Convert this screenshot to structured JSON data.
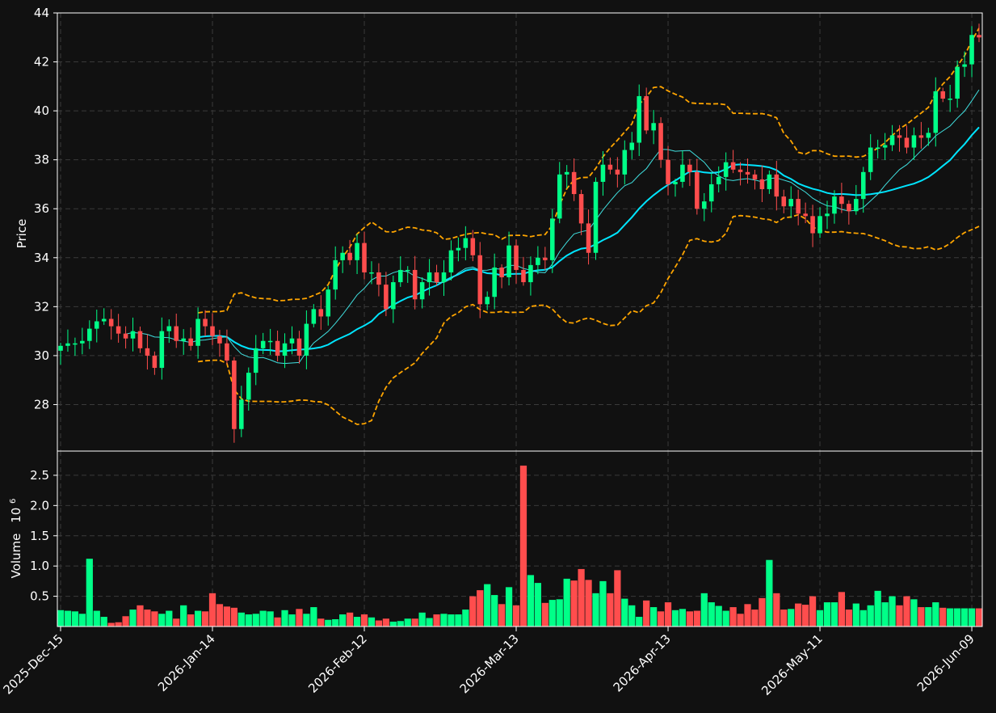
{
  "chart_data": {
    "type": "candlestick",
    "colors": {
      "background": "#111111",
      "up": "#00ff88",
      "down": "#ff4d4d",
      "bollinger": "#ffa500",
      "sma_fast": "#40e0e0",
      "sma_slow": "#00e5ff",
      "grid": "#3a3a3a",
      "axis": "#ffffff"
    },
    "price_panel": {
      "ylabel": "Price",
      "yticks": [
        28,
        30,
        32,
        34,
        36,
        38,
        40,
        42,
        44
      ],
      "ylim": [
        26.1,
        44.0
      ],
      "grid": true
    },
    "volume_panel": {
      "ylabel": "Volume",
      "ylabel_exp": "10",
      "ylabel_exp_power": "6",
      "yticks": [
        "0.5",
        "1.0",
        "1.5",
        "2.0",
        "2.5"
      ],
      "ytick_values": [
        0.5,
        1.0,
        1.5,
        2.0,
        2.5
      ],
      "ylim": [
        0,
        2.9
      ],
      "grid": true
    },
    "xaxis": {
      "tick_labels": [
        "2025-Dec-15",
        "2026-Jan-14",
        "2026-Feb-12",
        "2026-Mar-13",
        "2026-Apr-13",
        "2026-May-11",
        "2026-Jun-09"
      ],
      "tick_indices": [
        0,
        21,
        42,
        63,
        84,
        105,
        126
      ],
      "count": 128
    },
    "close": [
      30.4,
      30.5,
      30.5,
      30.6,
      31.1,
      31.4,
      31.5,
      31.2,
      30.9,
      30.7,
      31.0,
      30.3,
      30.0,
      29.5,
      31.0,
      31.2,
      30.6,
      30.7,
      30.4,
      31.5,
      31.2,
      30.8,
      30.5,
      29.8,
      27.0,
      28.2,
      29.3,
      30.3,
      30.6,
      30.6,
      30.0,
      30.5,
      30.7,
      30.0,
      31.3,
      31.9,
      31.6,
      32.7,
      33.9,
      34.2,
      33.9,
      34.6,
      33.4,
      33.4,
      32.9,
      31.9,
      33.0,
      33.5,
      33.5,
      32.3,
      33.0,
      33.4,
      33.0,
      33.4,
      34.3,
      34.4,
      34.8,
      34.1,
      32.1,
      32.4,
      33.6,
      33.2,
      34.5,
      33.5,
      33.0,
      33.7,
      34.0,
      33.9,
      35.6,
      37.4,
      37.5,
      36.6,
      35.4,
      34.2,
      37.1,
      37.8,
      37.6,
      37.4,
      38.4,
      38.7,
      40.6,
      39.2,
      39.5,
      38.0,
      37.0,
      37.1,
      37.8,
      37.5,
      36.0,
      36.3,
      37.0,
      37.3,
      37.9,
      37.6,
      37.5,
      37.4,
      37.2,
      36.8,
      37.4,
      36.5,
      36.1,
      36.4,
      35.8,
      35.7,
      35.0,
      35.7,
      35.8,
      36.5,
      36.2,
      35.9,
      36.4,
      37.5,
      38.5,
      38.5,
      38.6,
      39.0,
      38.9,
      38.5,
      39.0,
      38.9,
      39.1,
      40.8,
      40.5,
      40.5,
      41.8,
      41.9,
      43.1,
      43.0
    ],
    "volume": [
      0.27,
      0.26,
      0.25,
      0.21,
      1.12,
      0.26,
      0.16,
      0.06,
      0.07,
      0.17,
      0.28,
      0.35,
      0.28,
      0.25,
      0.21,
      0.26,
      0.13,
      0.35,
      0.2,
      0.26,
      0.25,
      0.55,
      0.37,
      0.33,
      0.31,
      0.23,
      0.2,
      0.21,
      0.26,
      0.25,
      0.15,
      0.27,
      0.2,
      0.29,
      0.21,
      0.32,
      0.13,
      0.11,
      0.12,
      0.2,
      0.23,
      0.16,
      0.2,
      0.15,
      0.1,
      0.13,
      0.08,
      0.09,
      0.13,
      0.13,
      0.23,
      0.14,
      0.2,
      0.21,
      0.2,
      0.2,
      0.28,
      0.5,
      0.6,
      0.7,
      0.52,
      0.37,
      0.65,
      0.35,
      2.66,
      0.85,
      0.72,
      0.39,
      0.44,
      0.45,
      0.79,
      0.76,
      0.95,
      0.77,
      0.55,
      0.75,
      0.55,
      0.93,
      0.46,
      0.35,
      0.16,
      0.43,
      0.32,
      0.25,
      0.4,
      0.27,
      0.29,
      0.25,
      0.26,
      0.55,
      0.4,
      0.34,
      0.26,
      0.32,
      0.21,
      0.37,
      0.28,
      0.47,
      1.1,
      0.55,
      0.28,
      0.29,
      0.38,
      0.36,
      0.5,
      0.27,
      0.4,
      0.4,
      0.57,
      0.28,
      0.38,
      0.27,
      0.35,
      0.59,
      0.4,
      0.5,
      0.35,
      0.5,
      0.45,
      0.32,
      0.32,
      0.4,
      0.31,
      0.3,
      0.3,
      0.3,
      0.3,
      0.3
    ]
  }
}
